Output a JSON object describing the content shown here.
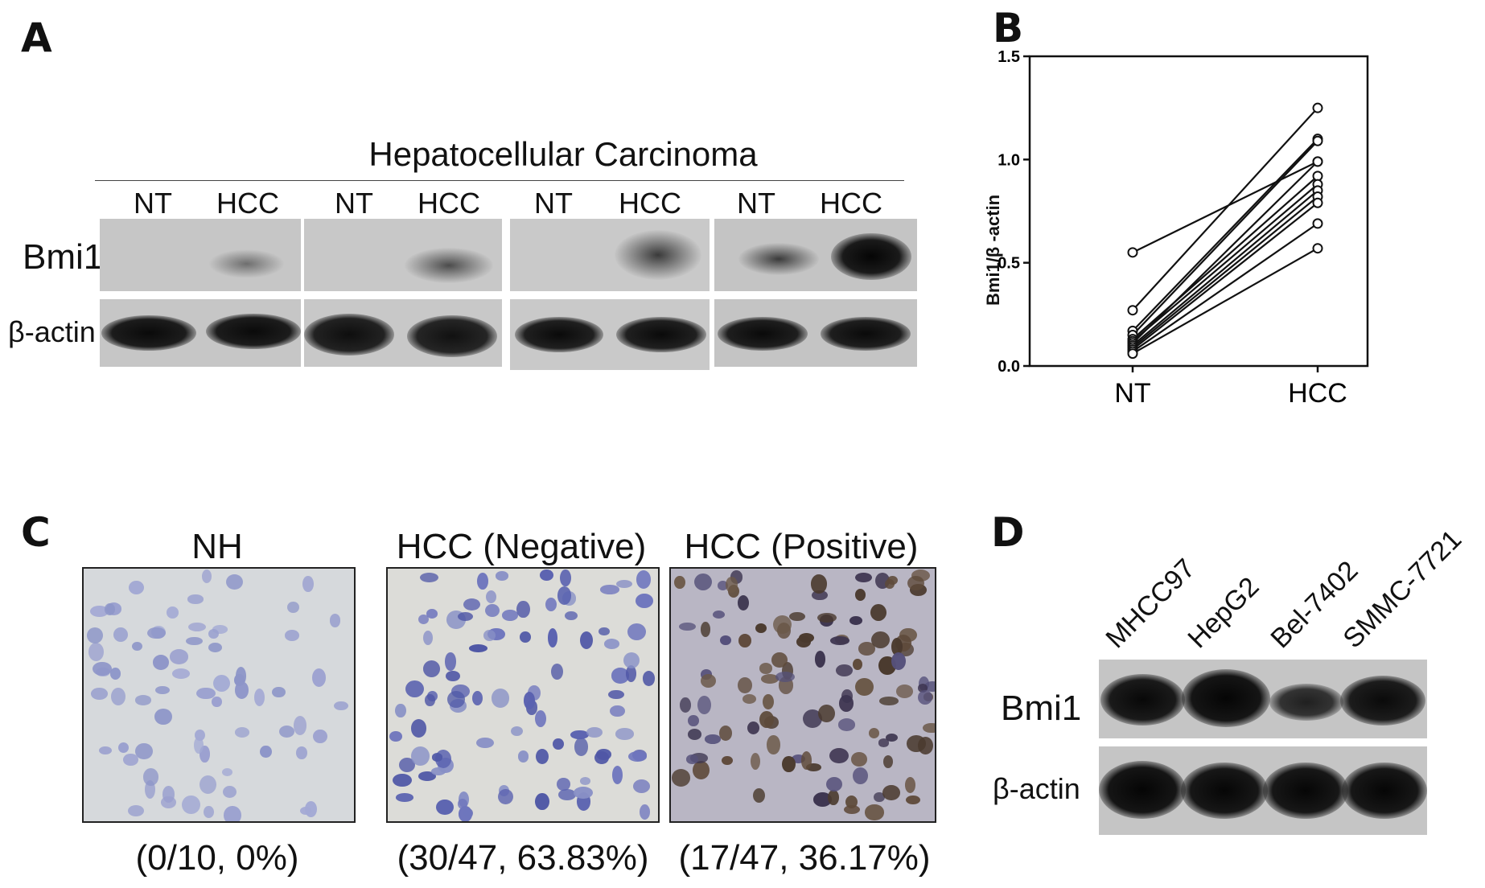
{
  "panels": {
    "a": "A",
    "b": "B",
    "c": "C",
    "d": "D"
  },
  "panel_a": {
    "title": "Hepatocellular Carcinoma",
    "lanes": [
      "NT",
      "HCC",
      "NT",
      "HCC",
      "NT",
      "HCC",
      "NT",
      "HCC"
    ],
    "row_labels": [
      "Bmi1",
      "β-actin"
    ]
  },
  "chart_data": {
    "type": "line",
    "ylabel": "Bmi1/β -actin",
    "categories": [
      "NT",
      "HCC"
    ],
    "ylim": [
      0,
      1.5
    ],
    "yticks": [
      "0.0",
      "0.5",
      "1.0",
      "1.5"
    ],
    "series": [
      {
        "values": [
          0.55,
          0.99
        ]
      },
      {
        "values": [
          0.27,
          1.25
        ]
      },
      {
        "values": [
          0.17,
          1.1
        ]
      },
      {
        "values": [
          0.15,
          1.09
        ]
      },
      {
        "values": [
          0.13,
          0.92
        ]
      },
      {
        "values": [
          0.12,
          0.88
        ]
      },
      {
        "values": [
          0.11,
          0.99
        ]
      },
      {
        "values": [
          0.1,
          0.85
        ]
      },
      {
        "values": [
          0.09,
          0.82
        ]
      },
      {
        "values": [
          0.08,
          0.79
        ]
      },
      {
        "values": [
          0.07,
          0.69
        ]
      },
      {
        "values": [
          0.06,
          0.57
        ]
      }
    ]
  },
  "panel_c": {
    "images": [
      {
        "title": "NH",
        "result": "(0/10, 0%)"
      },
      {
        "title": "HCC (Negative)",
        "result": "(30/47, 63.83%)"
      },
      {
        "title": "HCC (Positive)",
        "result": "(17/47, 36.17%)"
      }
    ]
  },
  "panel_d": {
    "cell_lines": [
      "MHCC97",
      "HepG2",
      "Bel-7402",
      "SMMC-7721"
    ],
    "row_labels": [
      "Bmi1",
      "β-actin"
    ]
  }
}
